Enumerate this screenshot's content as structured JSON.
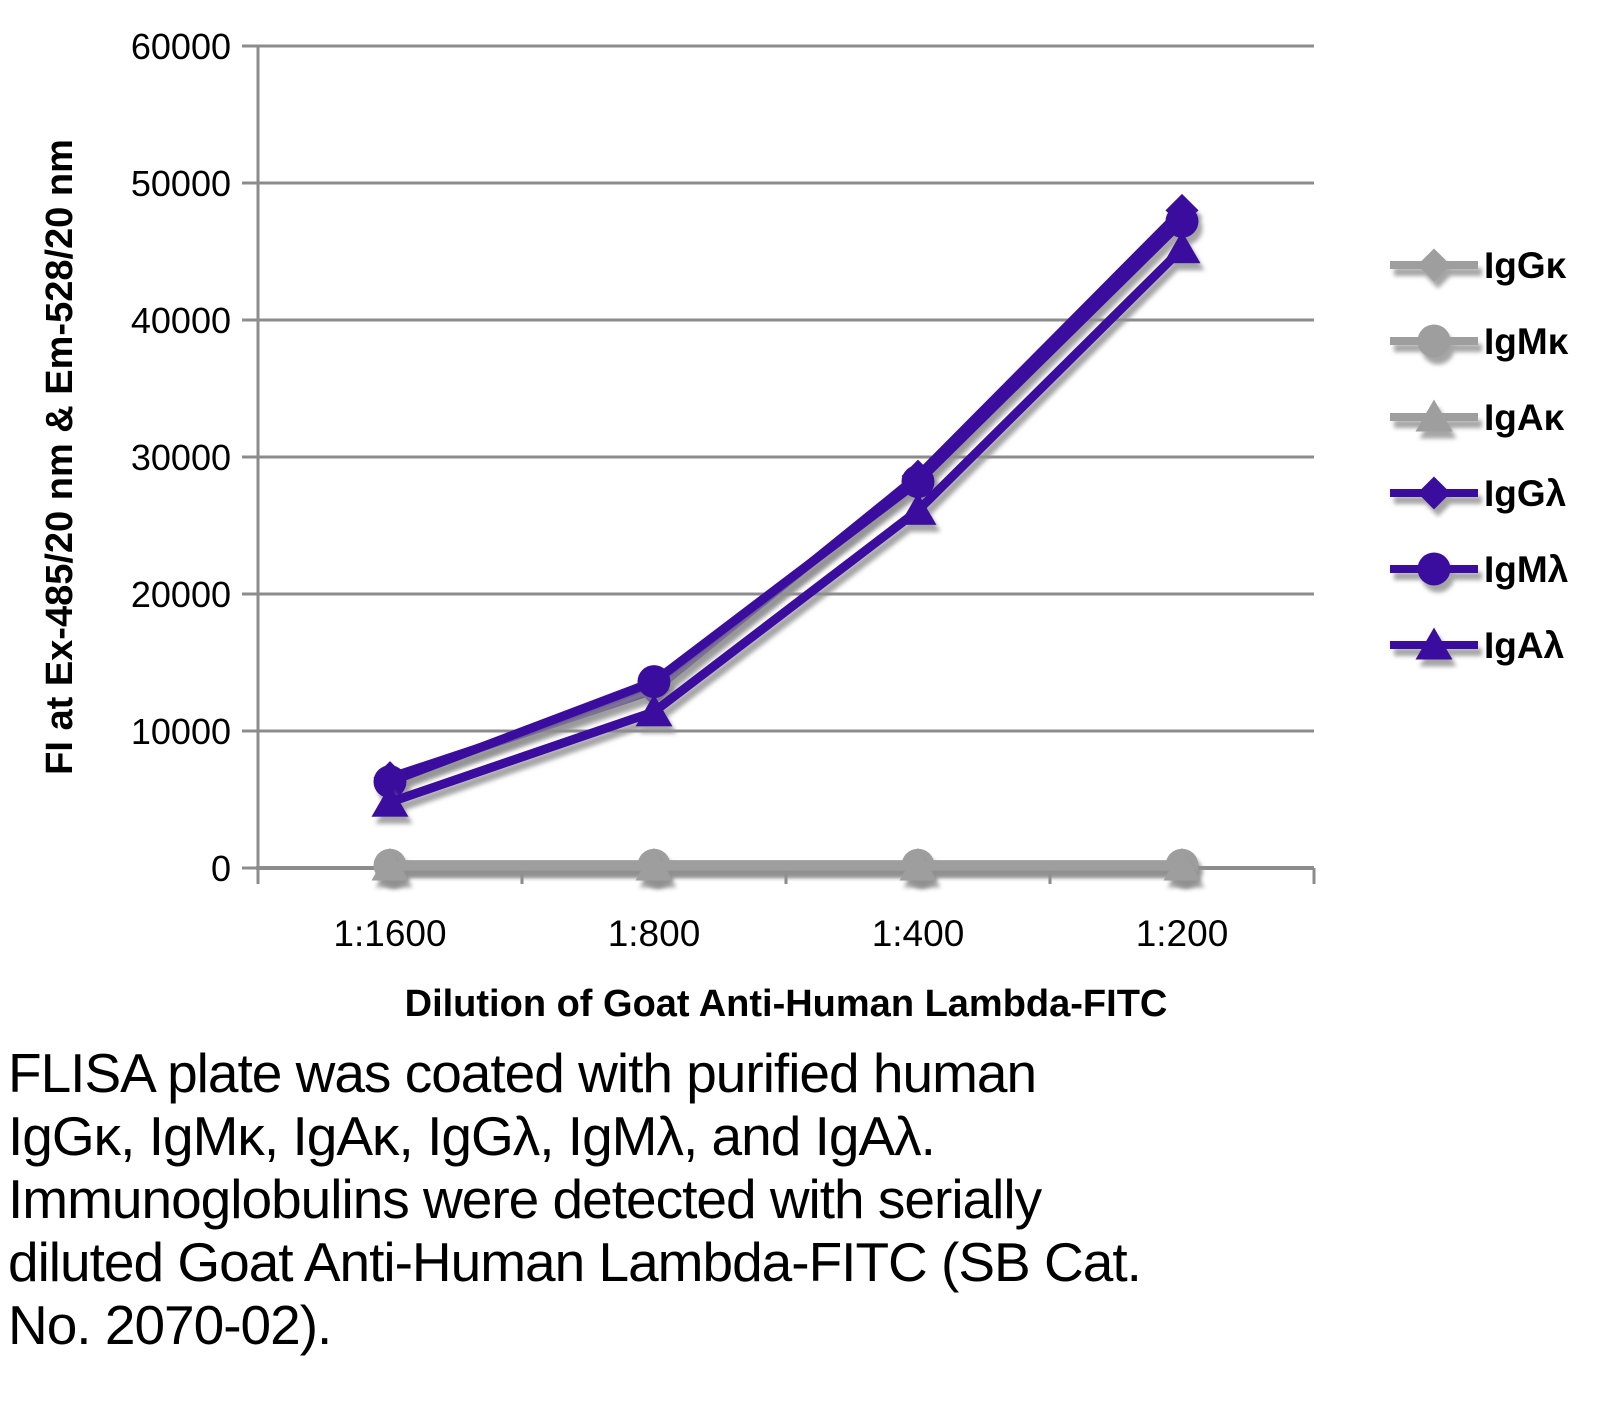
{
  "chart_data": {
    "type": "line",
    "title": "",
    "xlabel": "Dilution of Goat Anti-Human Lambda-FITC",
    "ylabel": "FI at Ex-485/20 nm & Em-528/20 nm",
    "categories": [
      "1:1600",
      "1:800",
      "1:400",
      "1:200"
    ],
    "yticks": [
      0,
      10000,
      20000,
      30000,
      40000,
      50000,
      60000
    ],
    "ylim": [
      0,
      60000
    ],
    "grid": true,
    "legend_position": "right",
    "series": [
      {
        "name": "IgGκ",
        "marker": "diamond",
        "color": "#9E9E9E",
        "values": [
          250,
          250,
          250,
          250
        ]
      },
      {
        "name": "IgMκ",
        "marker": "circle",
        "color": "#9E9E9E",
        "values": [
          200,
          200,
          200,
          200
        ]
      },
      {
        "name": "IgAκ",
        "marker": "triangle",
        "color": "#9E9E9E",
        "values": [
          150,
          150,
          150,
          150
        ]
      },
      {
        "name": "IgGλ",
        "marker": "diamond",
        "color": "#3A0A9E",
        "values": [
          6600,
          13000,
          28600,
          48000
        ]
      },
      {
        "name": "IgMλ",
        "marker": "circle",
        "color": "#3A0A9E",
        "values": [
          6300,
          13600,
          28200,
          47200
        ]
      },
      {
        "name": "IgAλ",
        "marker": "triangle",
        "color": "#3A0A9E",
        "values": [
          4800,
          11400,
          26100,
          45200
        ]
      }
    ]
  },
  "caption": {
    "lines": [
      "FLISA plate was coated with purified human",
      "IgGκ, IgMκ, IgAκ, IgGλ, IgMλ, and IgAλ.",
      "Immunoglobulins were detected with serially",
      "diluted Goat Anti-Human Lambda-FITC (SB Cat.",
      "No. 2070-02)."
    ]
  },
  "colors": {
    "purple": "#3A0A9E",
    "gray_series": "#9E9E9E",
    "grid": "#8C8C8C",
    "text": "#000000",
    "shadow": "#8F8F8F"
  }
}
